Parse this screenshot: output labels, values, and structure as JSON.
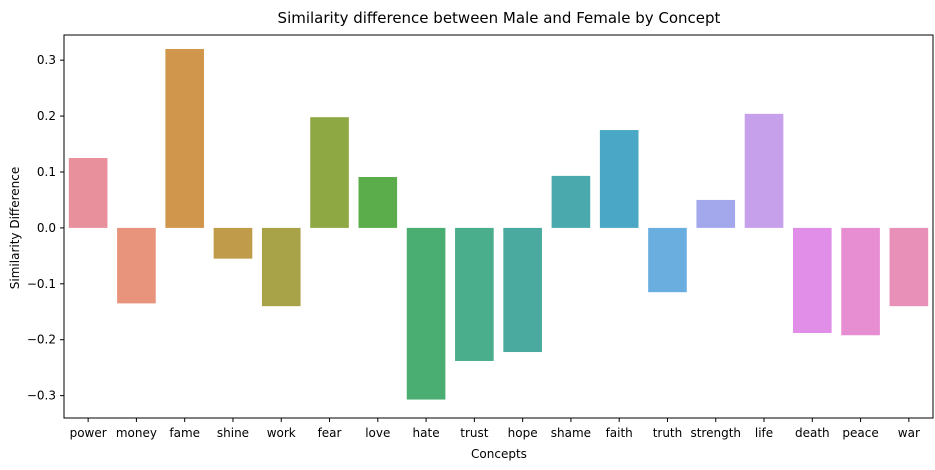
{
  "chart_data": {
    "type": "bar",
    "title": "Similarity difference between Male and Female by Concept",
    "xlabel": "Concepts",
    "ylabel": "Similarity Difference",
    "ylim": [
      -0.34,
      0.345
    ],
    "yticks": [
      -0.3,
      -0.2,
      -0.1,
      0.0,
      0.1,
      0.2,
      0.3
    ],
    "ytick_labels": [
      "−0.3",
      "−0.2",
      "−0.1",
      "0.0",
      "0.1",
      "0.2",
      "0.3"
    ],
    "grid": false,
    "categories": [
      "power",
      "money",
      "fame",
      "shine",
      "work",
      "fear",
      "love",
      "hate",
      "trust",
      "hope",
      "shame",
      "faith",
      "truth",
      "strength",
      "life",
      "death",
      "peace",
      "war"
    ],
    "values": [
      0.125,
      -0.135,
      0.32,
      -0.055,
      -0.14,
      0.198,
      0.091,
      -0.307,
      -0.238,
      -0.222,
      0.093,
      0.175,
      -0.115,
      0.05,
      0.204,
      -0.188,
      -0.192,
      -0.14
    ],
    "colors": [
      "#e8909c",
      "#e8937b",
      "#d0964c",
      "#bf9b4a",
      "#a8a348",
      "#8ea843",
      "#5aad4a",
      "#4aae73",
      "#4aad8c",
      "#4aaa9f",
      "#4aa9ad",
      "#4aa8c6",
      "#6aaee0",
      "#a3a8ec",
      "#c6a0ea",
      "#e08ee8",
      "#e78ed3",
      "#e890b7"
    ]
  }
}
